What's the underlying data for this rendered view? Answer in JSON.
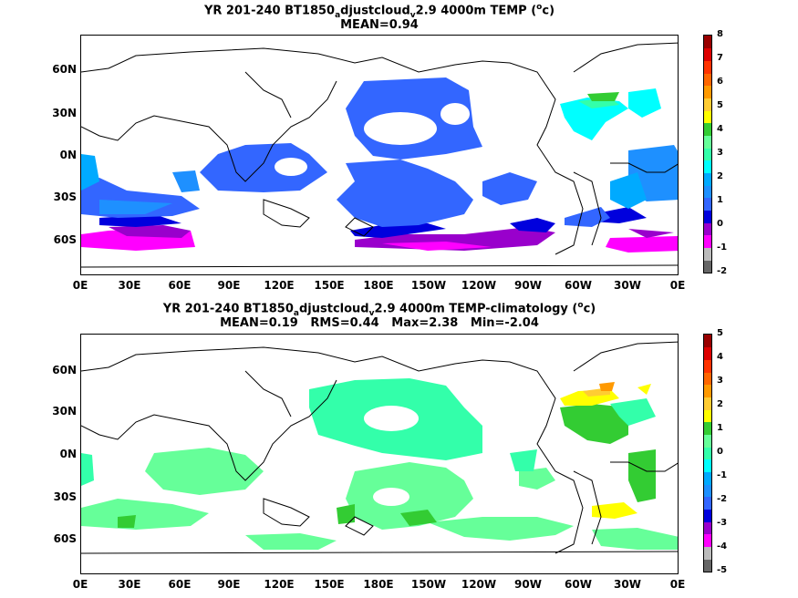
{
  "panels": [
    {
      "title_parts": [
        "YR 201-240 BT1850",
        "a",
        "djustcloud",
        "v",
        "2.9 4000m TEMP (",
        "o",
        "c)"
      ],
      "stats_line": "MEAN=0.94",
      "lat_labels": [
        "60N",
        "30N",
        "0N",
        "30S",
        "60S"
      ],
      "lon_labels": [
        "0E",
        "30E",
        "60E",
        "90E",
        "120E",
        "150E",
        "180E",
        "150W",
        "120W",
        "90W",
        "60W",
        "30W",
        "0E"
      ],
      "colorbar_labels": [
        "8",
        "7",
        "6",
        "5",
        "4",
        "3",
        "2",
        "1",
        "0",
        "-1",
        "-2"
      ]
    },
    {
      "title_parts": [
        "YR 201-240 BT1850",
        "a",
        "djustcloud",
        "v",
        "2.9 4000m TEMP-climatology (",
        "o",
        "c)"
      ],
      "stats_line": "MEAN=0.19   RMS=0.44   Max=2.38   Min=-2.04",
      "lat_labels": [
        "60N",
        "30N",
        "0N",
        "30S",
        "60S"
      ],
      "lon_labels": [
        "0E",
        "30E",
        "60E",
        "90E",
        "120E",
        "150E",
        "180E",
        "150W",
        "120W",
        "90W",
        "60W",
        "30W",
        "0E"
      ],
      "colorbar_labels": [
        "5",
        "4",
        "3",
        "2",
        "1",
        "0",
        "-1",
        "-2",
        "-3",
        "-4",
        "-5"
      ]
    }
  ],
  "colors": {
    "palette": [
      "#666666",
      "#bbbbbb",
      "#ff00ff",
      "#9900cc",
      "#0000dd",
      "#3366ff",
      "#1e90ff",
      "#00aaff",
      "#00ffff",
      "#33ffaa",
      "#66ff99",
      "#33cc33",
      "#ffff00",
      "#ffcc33",
      "#ff9900",
      "#ff6600",
      "#ff3300",
      "#dd0000",
      "#990000"
    ]
  }
}
